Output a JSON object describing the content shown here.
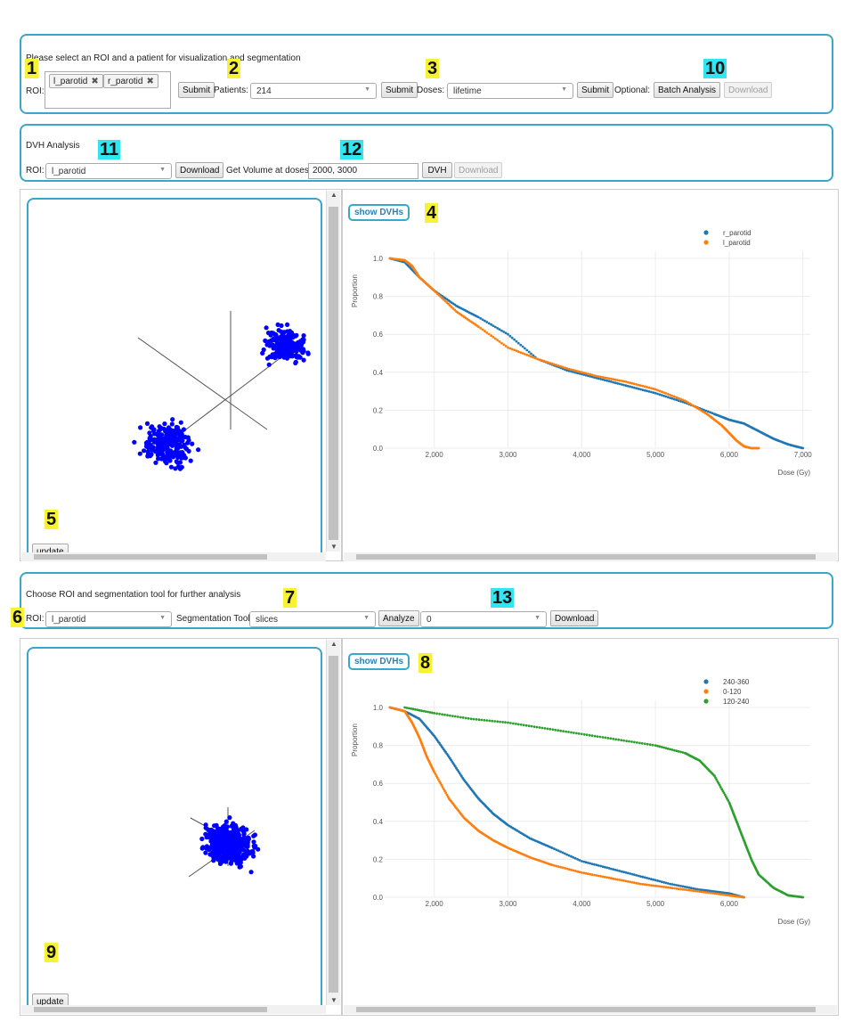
{
  "panel1": {
    "title": "Please select an ROI and a patient for visualization and segmentation",
    "roi_label": "ROI:",
    "roi_tags": [
      "l_parotid",
      "r_parotid"
    ],
    "submit": "Submit",
    "patients_label": "Patients:",
    "patients_value": "214",
    "doses_label": "Doses:",
    "doses_value": "lifetime",
    "optional_label": "Optional:",
    "batch_button": "Batch Analysis",
    "download": "Download"
  },
  "panel2": {
    "title": "DVH Analysis",
    "roi_label": "ROI:",
    "roi_value": "l_parotid",
    "download": "Download",
    "volume_label": "Get Volume at doses:",
    "volume_value": "2000, 3000",
    "dvh_button": "DVH",
    "download2": "Download"
  },
  "panel3": {
    "title": "Choose ROI and segmentation tool for further analysis",
    "roi_label": "ROI:",
    "roi_value": "l_parotid",
    "seg_label": "Segmentation Tool:",
    "seg_value": "slices",
    "analyze": "Analyze",
    "segment_value": "0",
    "download": "Download"
  },
  "badges": {
    "b1": "1",
    "b2": "2",
    "b3": "3",
    "b4": "4",
    "b5": "5",
    "b6": "6",
    "b7": "7",
    "b8": "8",
    "b9": "9",
    "b10": "10",
    "b11": "11",
    "b12": "12",
    "b13": "13"
  },
  "view1": {
    "update": "update",
    "show_dvhs": "show DVHs"
  },
  "view2": {
    "update": "update",
    "show_dvhs": "show DVHs"
  },
  "colors": {
    "accent": "#39a7c9",
    "blue": "#1f77b4",
    "orange": "#ff7f0e",
    "green": "#2ca02c",
    "scatter": "#0000ff"
  },
  "chart_data": [
    {
      "type": "scatter",
      "title": "",
      "xlabel": "Dose (Gy)",
      "ylabel": "Proportion",
      "xlim": [
        1400,
        7100
      ],
      "ylim": [
        0,
        1.0
      ],
      "x_ticks": [
        "2,000",
        "3,000",
        "4,000",
        "5,000",
        "6,000",
        "7,000"
      ],
      "x_tick_values": [
        2000,
        3000,
        4000,
        5000,
        6000,
        7000
      ],
      "y_ticks": [
        "1.0",
        "0.8",
        "0.6",
        "0.4",
        "0.2",
        "0.0"
      ],
      "y_tick_values": [
        1.0,
        0.8,
        0.6,
        0.4,
        0.2,
        0.0
      ],
      "legend": "top-right",
      "series": [
        {
          "name": "r_parotid",
          "color": "#1f77b4",
          "x": [
            1400,
            1600,
            1800,
            2000,
            2300,
            2600,
            3000,
            3400,
            3800,
            4200,
            4600,
            5000,
            5400,
            5800,
            6000,
            6200,
            6400,
            6600,
            6800,
            7000
          ],
          "y": [
            1.0,
            0.98,
            0.9,
            0.83,
            0.75,
            0.69,
            0.6,
            0.47,
            0.41,
            0.37,
            0.33,
            0.29,
            0.24,
            0.18,
            0.15,
            0.13,
            0.09,
            0.05,
            0.02,
            0.0
          ]
        },
        {
          "name": "l_parotid",
          "color": "#ff7f0e",
          "x": [
            1400,
            1600,
            1700,
            1800,
            2000,
            2300,
            2600,
            3000,
            3400,
            3800,
            4200,
            4600,
            5000,
            5400,
            5700,
            5900,
            6000,
            6100,
            6200,
            6300,
            6400
          ],
          "y": [
            1.0,
            0.99,
            0.96,
            0.9,
            0.83,
            0.72,
            0.64,
            0.53,
            0.47,
            0.42,
            0.38,
            0.35,
            0.31,
            0.25,
            0.18,
            0.12,
            0.08,
            0.04,
            0.01,
            0.0,
            0.0
          ]
        }
      ]
    },
    {
      "type": "scatter",
      "title": "",
      "xlabel": "Dose (Gy)",
      "ylabel": "Proportion",
      "xlim": [
        1400,
        7100
      ],
      "ylim": [
        0,
        1.0
      ],
      "x_ticks": [
        "2,000",
        "3,000",
        "4,000",
        "5,000",
        "6,000"
      ],
      "x_tick_values": [
        2000,
        3000,
        4000,
        5000,
        6000
      ],
      "y_ticks": [
        "1.0",
        "0.8",
        "0.6",
        "0.4",
        "0.2",
        "0.0"
      ],
      "y_tick_values": [
        1.0,
        0.8,
        0.6,
        0.4,
        0.2,
        0.0
      ],
      "legend": "top-right",
      "series": [
        {
          "name": "240-360",
          "color": "#1f77b4",
          "x": [
            1400,
            1600,
            1800,
            2000,
            2200,
            2400,
            2600,
            2800,
            3000,
            3300,
            3600,
            4000,
            4400,
            4800,
            5200,
            5600,
            5800,
            6000,
            6200
          ],
          "y": [
            1.0,
            0.98,
            0.94,
            0.85,
            0.74,
            0.62,
            0.52,
            0.44,
            0.38,
            0.31,
            0.26,
            0.19,
            0.15,
            0.11,
            0.07,
            0.04,
            0.03,
            0.02,
            0.0
          ]
        },
        {
          "name": "0-120",
          "color": "#ff7f0e",
          "x": [
            1400,
            1600,
            1700,
            1800,
            1900,
            2000,
            2200,
            2400,
            2600,
            2800,
            3000,
            3300,
            3600,
            4000,
            4400,
            4800,
            5200,
            5600,
            6000,
            6200
          ],
          "y": [
            1.0,
            0.98,
            0.92,
            0.84,
            0.74,
            0.66,
            0.52,
            0.42,
            0.35,
            0.3,
            0.26,
            0.21,
            0.17,
            0.13,
            0.1,
            0.07,
            0.05,
            0.03,
            0.01,
            0.0
          ]
        },
        {
          "name": "120-240",
          "color": "#2ca02c",
          "x": [
            1600,
            2000,
            2500,
            3000,
            3500,
            4000,
            4500,
            5000,
            5400,
            5600,
            5800,
            6000,
            6100,
            6200,
            6300,
            6400,
            6600,
            6800,
            7000
          ],
          "y": [
            1.0,
            0.97,
            0.94,
            0.92,
            0.89,
            0.86,
            0.83,
            0.8,
            0.76,
            0.72,
            0.64,
            0.5,
            0.4,
            0.3,
            0.2,
            0.12,
            0.05,
            0.01,
            0.0
          ]
        }
      ]
    }
  ]
}
